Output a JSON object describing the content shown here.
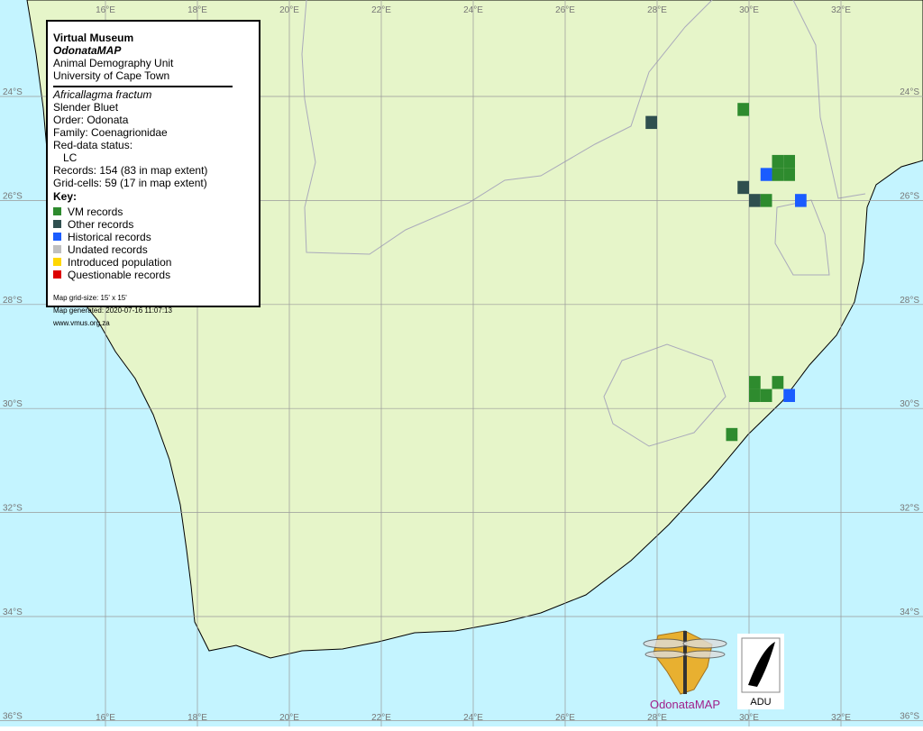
{
  "map": {
    "lon_ticks": [
      {
        "value": 16,
        "label": "16°E"
      },
      {
        "value": 18,
        "label": "18°E"
      },
      {
        "value": 20,
        "label": "20°E"
      },
      {
        "value": 22,
        "label": "22°E"
      },
      {
        "value": 24,
        "label": "24°E"
      },
      {
        "value": 26,
        "label": "26°E"
      },
      {
        "value": 28,
        "label": "28°E"
      },
      {
        "value": 30,
        "label": "30°E"
      },
      {
        "value": 32,
        "label": "32°E"
      }
    ],
    "lat_ticks": [
      {
        "value": 24,
        "label": "24°S"
      },
      {
        "value": 26,
        "label": "26°S"
      },
      {
        "value": 28,
        "label": "28°S"
      },
      {
        "value": 30,
        "label": "30°S"
      },
      {
        "value": 32,
        "label": "32°S"
      },
      {
        "value": 34,
        "label": "34°S"
      },
      {
        "value": 36,
        "label": "36°S"
      }
    ]
  },
  "legend": {
    "title": "Virtual Museum",
    "project": "OdonataMAP",
    "unit": "Animal Demography Unit",
    "university": "University of Cape Town",
    "species": "Africallagma fractum",
    "common_name": "Slender Bluet",
    "order": "Order: Odonata",
    "family": "Family: Coenagrionidae",
    "red_data": "Red-data status:",
    "status": "LC",
    "records": "Records: 154 (83 in map extent)",
    "grid_cells": "Grid-cells: 59 (17 in map extent)",
    "key_title": "Key:",
    "key": [
      {
        "label": "VM records",
        "color": "#2e8b2e"
      },
      {
        "label": "Other records",
        "color": "#2f4f4f"
      },
      {
        "label": "Historical records",
        "color": "#1a5cff"
      },
      {
        "label": "Undated records",
        "color": "#c0c0c0"
      },
      {
        "label": "Introduced population",
        "color": "#ffd700"
      },
      {
        "label": "Questionable records",
        "color": "#dd0000"
      }
    ],
    "grid_size": "Map grid-size: 15' x 15'",
    "generated": "Map generated: 2020-07-16 11:07:13",
    "url": "www.vmus.org.za"
  },
  "cells": [
    {
      "lon": 27.875,
      "lat": 24.5,
      "key": 1
    },
    {
      "lon": 29.875,
      "lat": 24.25,
      "key": 0
    },
    {
      "lon": 30.625,
      "lat": 25.25,
      "key": 0
    },
    {
      "lon": 30.875,
      "lat": 25.25,
      "key": 0
    },
    {
      "lon": 30.625,
      "lat": 25.5,
      "key": 0
    },
    {
      "lon": 30.875,
      "lat": 25.5,
      "key": 0
    },
    {
      "lon": 30.375,
      "lat": 25.5,
      "key": 2
    },
    {
      "lon": 29.875,
      "lat": 25.75,
      "key": 1
    },
    {
      "lon": 30.125,
      "lat": 26.0,
      "key": 1
    },
    {
      "lon": 30.375,
      "lat": 26.0,
      "key": 0
    },
    {
      "lon": 31.125,
      "lat": 26.0,
      "key": 2
    },
    {
      "lon": 30.125,
      "lat": 29.5,
      "key": 0
    },
    {
      "lon": 30.625,
      "lat": 29.5,
      "key": 0
    },
    {
      "lon": 30.125,
      "lat": 29.75,
      "key": 0
    },
    {
      "lon": 30.375,
      "lat": 29.75,
      "key": 0
    },
    {
      "lon": 30.875,
      "lat": 29.75,
      "key": 2
    },
    {
      "lon": 29.625,
      "lat": 30.5,
      "key": 0
    }
  ],
  "logos": {
    "odonata": "OdonataMAP",
    "adu": "ADU"
  }
}
